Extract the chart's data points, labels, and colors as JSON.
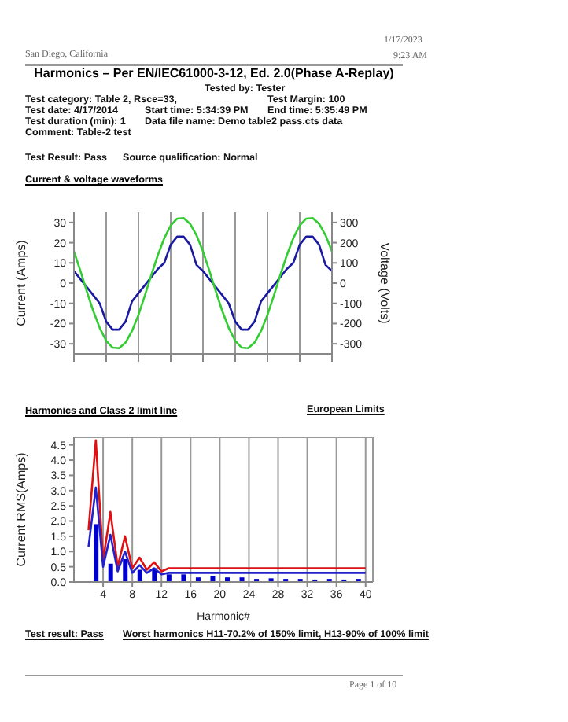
{
  "chart_data": [
    {
      "type": "line",
      "title": "Harmonics – Per EN/IEC61000-3-12, Ed. 2.0(Phase A-Replay)",
      "subtitle": "Current & voltage waveforms",
      "ylabel": "Current (Amps)",
      "y2label": "Voltage (Volts)",
      "annotations": [
        "San Diego, California",
        "1/17/2023",
        "9:23 AM",
        "Tested by: Tester",
        "Test category: Table 2,  Rsce=33,",
        "Test Margin: 100",
        "Test date: 4/17/2014",
        "Start time: 5:34:39 PM",
        "End time: 5:35:49 PM",
        "Test duration (min): 1",
        "Data file name: Demo  table2  pass.cts  data",
        "Comment: Table-2 test",
        "Test Result: Pass",
        "Source qualification: Normal"
      ],
      "categories": [
        null,
        null,
        null,
        null,
        null,
        null,
        null,
        null,
        null,
        null,
        null,
        null,
        null,
        null,
        null,
        null,
        null,
        null,
        null,
        null,
        null,
        null,
        null,
        null,
        null,
        null,
        null,
        null,
        null,
        null,
        null,
        null,
        null,
        null,
        null,
        null,
        null,
        null,
        null,
        null,
        null
      ],
      "ylim": [
        -35,
        35
      ],
      "yticks": [
        -30,
        -20,
        -10,
        0,
        10,
        20,
        30
      ],
      "y2lim": [
        -350,
        350
      ],
      "y2ticks": [
        -300,
        -200,
        -100,
        0,
        100,
        200,
        300
      ],
      "grid": "x",
      "legend": false,
      "series": [
        {
          "color": "#1a1aa0",
          "values": [
            6,
            2,
            -2,
            -6,
            -10,
            -19,
            -23,
            -23,
            -19,
            -9,
            -5,
            -1,
            3,
            7,
            10,
            19,
            23,
            23,
            19,
            9,
            6,
            2,
            -2,
            -6,
            -10,
            -19,
            -23,
            -23,
            -19,
            -9,
            -5,
            -1,
            3,
            7,
            10,
            19,
            23,
            23,
            19,
            9,
            6
          ]
        },
        {
          "color": "#33cc33",
          "axis": "y2",
          "values": [
            157,
            61,
            -41,
            -138,
            -222,
            -285,
            -319,
            -322,
            -294,
            -237,
            -157,
            -61,
            41,
            138,
            222,
            285,
            319,
            322,
            294,
            237,
            157,
            61,
            -41,
            -138,
            -222,
            -285,
            -319,
            -322,
            -294,
            -237,
            -157,
            -61,
            41,
            138,
            222,
            285,
            319,
            322,
            294,
            237,
            157
          ]
        }
      ]
    },
    {
      "type": "bar",
      "title": "Harmonics and Class 2 limit line",
      "xlabel": "Harmonic#",
      "ylabel": "Current RMS(Amps)",
      "annotations": [
        "European Limits",
        "Test result:  Pass",
        "Worst harmonics  H11-70.2% of 150% limit, H13-90% of 100% limit",
        "Page 1 of 10"
      ],
      "x": [
        2,
        3,
        4,
        5,
        6,
        7,
        8,
        9,
        10,
        11,
        12,
        13,
        14,
        15,
        16,
        17,
        18,
        19,
        20,
        21,
        22,
        23,
        24,
        25,
        26,
        27,
        28,
        29,
        30,
        31,
        32,
        33,
        34,
        35,
        36,
        37,
        38,
        39,
        40
      ],
      "xlim": [
        0,
        41
      ],
      "xticks": [
        4,
        8,
        12,
        16,
        20,
        24,
        28,
        32,
        36,
        40
      ],
      "ylim": [
        0,
        4.75
      ],
      "yticks": [
        {
          "value": 0,
          "label": "0.0"
        },
        {
          "value": 0.5,
          "label": "0.5"
        },
        {
          "value": 1,
          "label": "1.0"
        },
        {
          "value": 1.5,
          "label": "1.5"
        },
        {
          "value": 2,
          "label": "2.0"
        },
        {
          "value": 2.5,
          "label": "2.5"
        },
        {
          "value": 3,
          "label": "3.0"
        },
        {
          "value": 3.5,
          "label": "3.5"
        },
        {
          "value": 4,
          "label": "4.0"
        },
        {
          "value": 4.5,
          "label": "4.5"
        }
      ],
      "grid": true,
      "legend": false,
      "series": [
        {
          "color": "#0000cc",
          "values": [
            null,
            1.9,
            null,
            0.6,
            null,
            0.75,
            null,
            0.4,
            null,
            0.45,
            null,
            0.25,
            null,
            0.25,
            null,
            0.15,
            null,
            0.2,
            null,
            0.15,
            null,
            0.15,
            null,
            0.1,
            null,
            0.12,
            null,
            0.1,
            null,
            0.1,
            null,
            0.08,
            null,
            0.1,
            null,
            0.08,
            null,
            0.1,
            null
          ]
        },
        {
          "type": "line",
          "color": "#dd1111",
          "values": [
            1.7,
            4.65,
            0.7,
            2.3,
            0.5,
            1.5,
            0.45,
            0.8,
            0.4,
            0.65,
            0.35,
            0.45,
            0.45,
            0.45,
            0.45,
            0.45,
            0.45,
            0.45,
            0.45,
            0.45,
            0.45,
            0.45,
            0.45,
            0.45,
            0.45,
            0.45,
            0.45,
            0.45,
            0.45,
            0.45,
            0.45,
            0.45,
            0.45,
            0.45,
            0.45,
            0.45,
            0.45,
            0.45,
            0.45
          ]
        },
        {
          "type": "line",
          "color": "#2222cc",
          "values": [
            1.15,
            3.1,
            0.5,
            1.55,
            0.35,
            1.0,
            0.3,
            0.55,
            0.3,
            0.45,
            0.25,
            0.3,
            0.3,
            0.3,
            0.3,
            0.3,
            0.3,
            0.3,
            0.3,
            0.3,
            0.3,
            0.3,
            0.3,
            0.3,
            0.3,
            0.3,
            0.3,
            0.3,
            0.3,
            0.3,
            0.3,
            0.3,
            0.3,
            0.3,
            0.3,
            0.3,
            0.3,
            0.3,
            0.3
          ]
        }
      ]
    }
  ]
}
